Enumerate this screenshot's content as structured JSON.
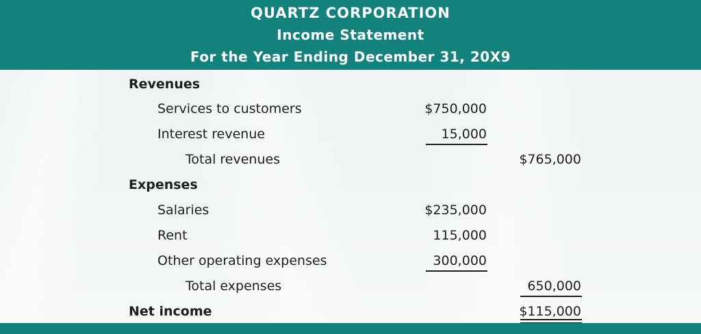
{
  "header": {
    "company": "QUARTZ CORPORATION",
    "title": "Income Statement",
    "period": "For the Year Ending December 31, 20X9"
  },
  "revenues": {
    "heading": "Revenues",
    "items": [
      {
        "label": "Services to customers",
        "amount": "$750,000"
      },
      {
        "label": "Interest revenue",
        "amount": "15,000"
      }
    ],
    "total_label": "Total revenues",
    "total_amount": "$765,000"
  },
  "expenses": {
    "heading": "Expenses",
    "items": [
      {
        "label": "Salaries",
        "amount": "$235,000"
      },
      {
        "label": "Rent",
        "amount": "115,000"
      },
      {
        "label": "Other operating expenses",
        "amount": "300,000"
      }
    ],
    "total_label": "Total expenses",
    "total_amount": "650,000"
  },
  "net_income": {
    "label": "Net income",
    "amount": "$115,000"
  },
  "colors": {
    "header_bg": "#14827c",
    "text": "#1d1d1d"
  }
}
